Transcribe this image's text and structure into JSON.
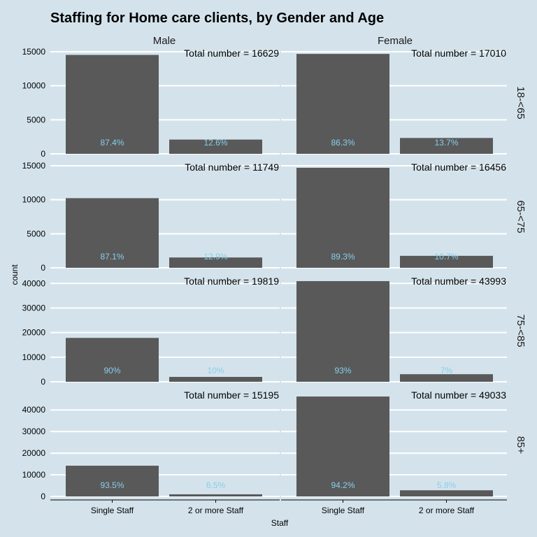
{
  "chart_data": {
    "type": "bar",
    "title": "Staffing for Home care clients, by Gender and Age",
    "xlabel": "Staff",
    "ylabel": "count",
    "categories": [
      "Single Staff",
      "2 or more Staff"
    ],
    "columns": [
      "Male",
      "Female"
    ],
    "rows": [
      "18-<65",
      "65-<75",
      "75-<85",
      "85+"
    ],
    "grid": true,
    "colors": {
      "background": "#d4e3eb",
      "bar": "#595959",
      "gridline": "#ffffff",
      "percent_label": "#87ceeb"
    },
    "panels": [
      {
        "row_label": "18-<65",
        "ylim": [
          0,
          15000
        ],
        "yticks": [
          0,
          5000,
          10000,
          15000
        ],
        "cells": [
          {
            "gender": "Male",
            "total_label": "Total number = 16629",
            "values": [
              14534,
              2095
            ],
            "labels": [
              "87.4%",
              "12.6%"
            ]
          },
          {
            "gender": "Female",
            "total_label": "Total number = 17010",
            "values": [
              14680,
              2330
            ],
            "labels": [
              "86.3%",
              "13.7%"
            ]
          }
        ]
      },
      {
        "row_label": "65-<75",
        "ylim": [
          0,
          15000
        ],
        "yticks": [
          0,
          5000,
          10000,
          15000
        ],
        "cells": [
          {
            "gender": "Male",
            "total_label": "Total number = 11749",
            "values": [
              10233,
              1516
            ],
            "labels": [
              "87.1%",
              "12.9%"
            ]
          },
          {
            "gender": "Female",
            "total_label": "Total number = 16456",
            "values": [
              14695,
              1761
            ],
            "labels": [
              "89.3%",
              "10.7%"
            ]
          }
        ]
      },
      {
        "row_label": "75-<85",
        "ylim": [
          0,
          40000
        ],
        "yticks": [
          0,
          10000,
          20000,
          30000,
          40000
        ],
        "cells": [
          {
            "gender": "Male",
            "total_label": "Total number = 19819",
            "values": [
              17837,
              1982
            ],
            "labels": [
              "90%",
              "10%"
            ]
          },
          {
            "gender": "Female",
            "total_label": "Total number = 43993",
            "values": [
              40913,
              3080
            ],
            "labels": [
              "93%",
              "7%"
            ]
          }
        ]
      },
      {
        "row_label": "85+",
        "ylim": [
          0,
          40000
        ],
        "yticks": [
          0,
          10000,
          20000,
          30000,
          40000
        ],
        "cells": [
          {
            "gender": "Male",
            "total_label": "Total number = 15195",
            "values": [
              14207,
              988
            ],
            "labels": [
              "93.5%",
              "6.5%"
            ]
          },
          {
            "gender": "Female",
            "total_label": "Total number = 49033",
            "values": [
              46187,
              2846
            ],
            "labels": [
              "94.2%",
              "5.8%"
            ]
          }
        ]
      }
    ]
  }
}
